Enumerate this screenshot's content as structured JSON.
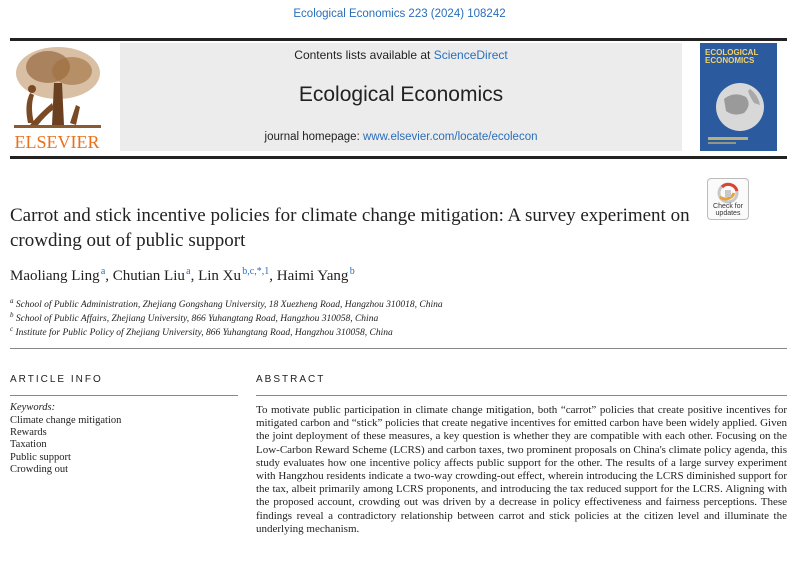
{
  "citation": "Ecological Economics 223 (2024) 108242",
  "publisher": {
    "name": "ELSEVIER"
  },
  "header": {
    "contents_prefix": "Contents lists available at ",
    "contents_link": "ScienceDirect",
    "journal_title": "Ecological Economics",
    "homepage_prefix": "journal homepage: ",
    "homepage_link": "www.elsevier.com/locate/ecolecon"
  },
  "cover": {
    "title": "ECOLOGICAL ECONOMICS"
  },
  "check_updates": {
    "line1": "Check for",
    "line2": "updates"
  },
  "article": {
    "title": "Carrot and stick incentive policies for climate change mitigation: A survey experiment on crowding out of public support",
    "authors": [
      {
        "name": "Maoliang Ling",
        "sup": "a"
      },
      {
        "name": "Chutian Liu",
        "sup": "a"
      },
      {
        "name": "Lin Xu",
        "sup": "b,c,*,1"
      },
      {
        "name": "Haimi Yang",
        "sup": "b"
      }
    ],
    "affiliations": [
      {
        "sup": "a",
        "text": "School of Public Administration, Zhejiang Gongshang University, 18 Xuezheng Road, Hangzhou 310018, China"
      },
      {
        "sup": "b",
        "text": "School of Public Affairs, Zhejiang University, 866 Yuhangtang Road, Hangzhou 310058, China"
      },
      {
        "sup": "c",
        "text": "Institute for Public Policy of Zhejiang University, 866 Yuhangtang Road, Hangzhou 310058, China"
      }
    ]
  },
  "article_info": {
    "heading": "ARTICLE INFO",
    "keywords_label": "Keywords:",
    "keywords": [
      "Climate change mitigation",
      "Rewards",
      "Taxation",
      "Public support",
      "Crowding out"
    ]
  },
  "abstract": {
    "heading": "ABSTRACT",
    "text": "To motivate public participation in climate change mitigation, both “carrot” policies that create positive incentives for mitigated carbon and “stick” policies that create negative incentives for emitted carbon have been widely applied. Given the joint deployment of these measures, a key question is whether they are compatible with each other. Focusing on the Low-Carbon Reward Scheme (LCRS) and carbon taxes, two prominent proposals on China's climate policy agenda, this study evaluates how one incentive policy affects public support for the other. The results of a large survey experiment with Hangzhou residents indicate a two-way crowding-out effect, wherein introducing the LCRS diminished support for the tax, albeit primarily among LCRS proponents, and introducing the tax reduced support for the LCRS. Aligning with the proposed account, crowding out was driven by a decrease in policy effectiveness and fairness perceptions. These findings reveal a contradictory relationship between carrot and stick policies at the citizen level and illuminate the underlying mechanism."
  },
  "colors": {
    "link": "#2a6ebb",
    "elsevier_orange": "#e9711c",
    "banner_bg": "#ececec"
  }
}
